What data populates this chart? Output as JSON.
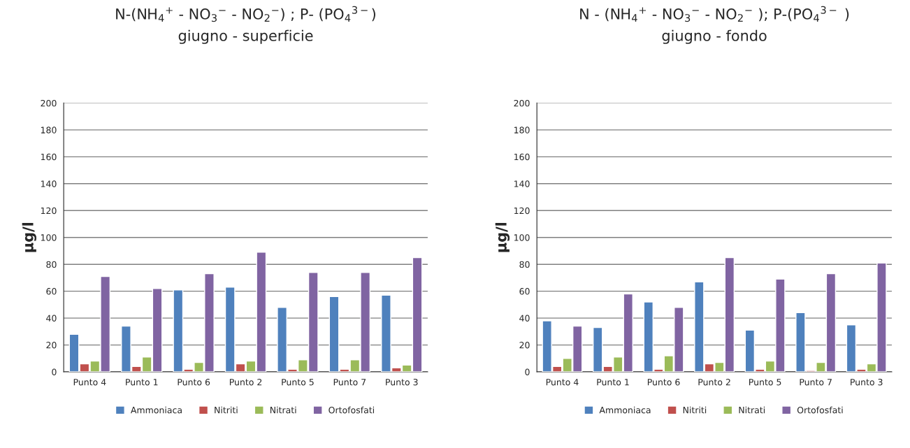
{
  "chart_data": [
    {
      "type": "bar",
      "title": "N-(NH$_{4}$$^{+}$ - NO$_{3}$$^{−}$ - NO$_{2}$$^{−}$) ; P- (PO$_{4}$$^{3−}$)",
      "subtitle": "giugno - superficie",
      "ylabel": "µg/l",
      "categories": [
        "Punto 4",
        "Punto 1",
        "Punto 6",
        "Punto 2",
        "Punto 5",
        "Punto 7",
        "Punto 3"
      ],
      "series": [
        {
          "name": "Ammoniaca",
          "color": "#4f81bd",
          "values": [
            28,
            34,
            61,
            63,
            48,
            56,
            57
          ]
        },
        {
          "name": "Nitriti",
          "color": "#c0504d",
          "values": [
            6,
            4,
            2,
            6,
            2,
            2,
            3
          ]
        },
        {
          "name": "Nitrati",
          "color": "#9bbb59",
          "values": [
            8,
            11,
            7,
            8,
            9,
            9,
            5
          ]
        },
        {
          "name": "Ortofosfati",
          "color": "#8064a2",
          "values": [
            71,
            62,
            73,
            89,
            74,
            74,
            85
          ]
        }
      ],
      "ylim": [
        0,
        200
      ],
      "yticks": [
        0,
        20,
        40,
        60,
        80,
        100,
        120,
        140,
        160,
        180,
        200
      ],
      "grid": "y",
      "legend": "bottom"
    },
    {
      "type": "bar",
      "title": "N - (NH$_{4}$$^{+}$ - NO$_{3}$$^{−}$ - NO$_{2}$$^{−}$ ); P-(PO$_{4}$$^{3−}$ )",
      "subtitle": "giugno - fondo",
      "ylabel": "µg/l",
      "categories": [
        "Punto 4",
        "Punto 1",
        "Punto 6",
        "Punto 2",
        "Punto 5",
        "Punto 7",
        "Punto 3"
      ],
      "series": [
        {
          "name": "Ammoniaca",
          "color": "#4f81bd",
          "values": [
            38,
            33,
            52,
            67,
            31,
            44,
            35
          ]
        },
        {
          "name": "Nitriti",
          "color": "#c0504d",
          "values": [
            4,
            4,
            2,
            6,
            2,
            1,
            2
          ]
        },
        {
          "name": "Nitrati",
          "color": "#9bbb59",
          "values": [
            10,
            11,
            12,
            7,
            8,
            7,
            6
          ]
        },
        {
          "name": "Ortofosfati",
          "color": "#8064a2",
          "values": [
            34,
            58,
            48,
            85,
            69,
            73,
            81
          ]
        }
      ],
      "ylim": [
        0,
        200
      ],
      "yticks": [
        0,
        20,
        40,
        60,
        80,
        100,
        120,
        140,
        160,
        180,
        200
      ],
      "grid": "y",
      "legend": "bottom"
    }
  ]
}
